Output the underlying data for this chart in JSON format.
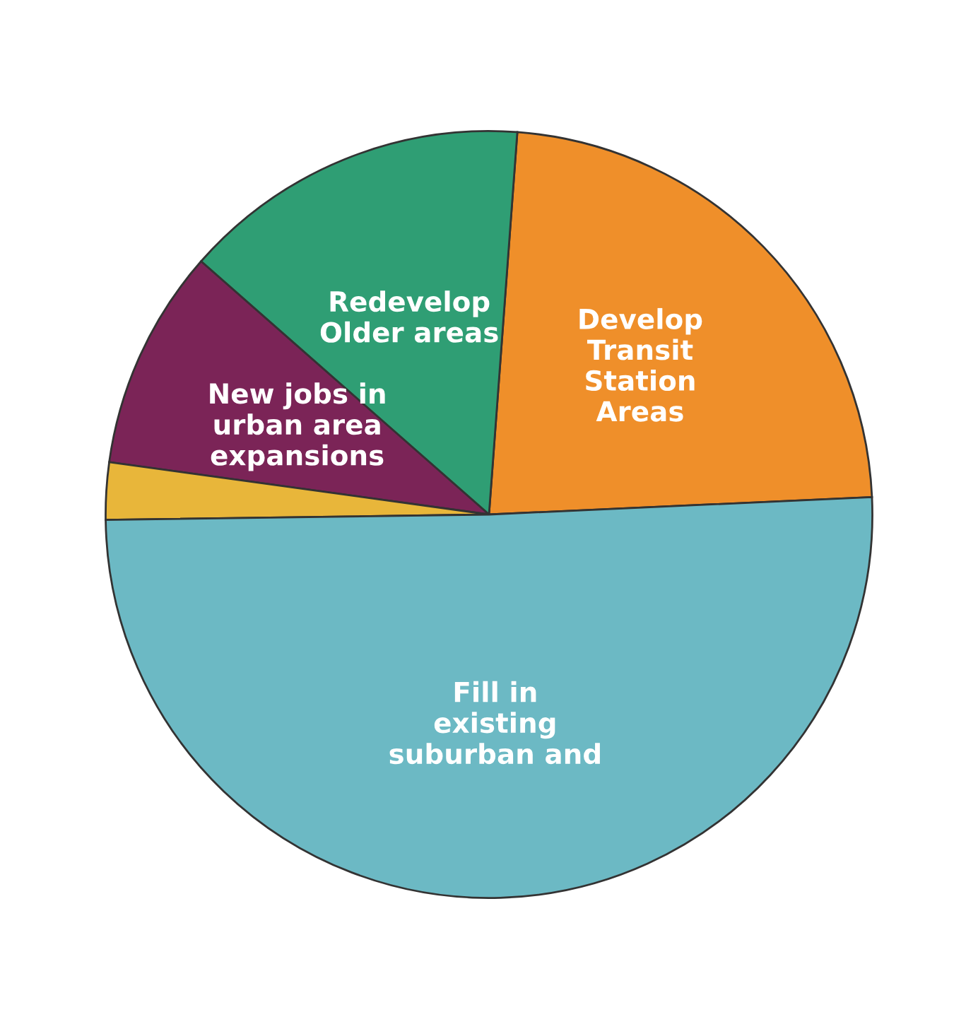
{
  "chart_data": {
    "type": "pie",
    "categories": [
      "Develop\nTransit\nStation\nAreas",
      "Redevelop\nOlder areas",
      "New jobs in\nurban area\nexpansions",
      null,
      "Fill in\nexisting\nsuburban and"
    ],
    "values": [
      23.1,
      14.7,
      9.3,
      2.4,
      50.5
    ],
    "colors": [
      "#ef8f2a",
      "#2f9e74",
      "#7b2457",
      "#e8b63a",
      "#6cb9c4"
    ]
  }
}
